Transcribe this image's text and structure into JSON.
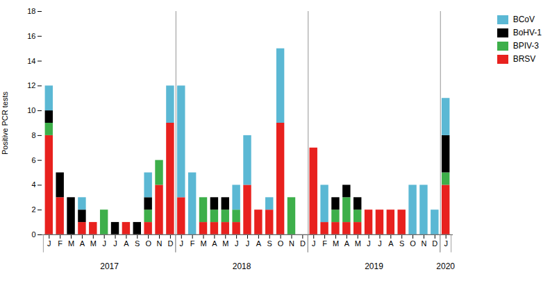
{
  "chart_data": {
    "type": "bar",
    "stacked": true,
    "categories": [
      "J",
      "F",
      "M",
      "A",
      "M",
      "J",
      "J",
      "A",
      "S",
      "O",
      "N",
      "D",
      "J",
      "F",
      "M",
      "A",
      "M",
      "J",
      "J",
      "A",
      "S",
      "O",
      "N",
      "D",
      "J",
      "F",
      "M",
      "A",
      "M",
      "J",
      "J",
      "A",
      "S",
      "O",
      "N",
      "D",
      "J"
    ],
    "series": [
      {
        "name": "BRSV",
        "color": "#e8211e",
        "values": [
          8,
          3,
          0,
          1,
          1,
          0,
          0,
          1,
          0,
          1,
          4,
          9,
          3,
          0,
          1,
          1,
          1,
          1,
          4,
          2,
          2,
          9,
          0,
          0,
          7,
          1,
          1,
          1,
          1,
          2,
          2,
          2,
          2,
          0,
          0,
          0,
          4
        ]
      },
      {
        "name": "BPIV-3",
        "color": "#3daf4a",
        "values": [
          1,
          0,
          0,
          0,
          0,
          2,
          0,
          0,
          0,
          1,
          2,
          0,
          0,
          0,
          2,
          1,
          1,
          1,
          0,
          0,
          0,
          0,
          3,
          0,
          0,
          0,
          1,
          2,
          1,
          0,
          0,
          0,
          0,
          0,
          0,
          0,
          1
        ]
      },
      {
        "name": "BoHV-1",
        "color": "#000000",
        "values": [
          1,
          2,
          3,
          1,
          0,
          0,
          1,
          0,
          1,
          1,
          0,
          0,
          0,
          0,
          0,
          1,
          1,
          0,
          0,
          0,
          0,
          0,
          0,
          0,
          0,
          0,
          1,
          1,
          1,
          0,
          0,
          0,
          0,
          0,
          0,
          0,
          3
        ]
      },
      {
        "name": "BCoV",
        "color": "#5bb8d4",
        "values": [
          2,
          0,
          0,
          1,
          0,
          0,
          0,
          0,
          0,
          2,
          0,
          3,
          9,
          5,
          0,
          0,
          0,
          2,
          4,
          0,
          1,
          6,
          0,
          0,
          0,
          3,
          0,
          0,
          0,
          0,
          0,
          0,
          0,
          4,
          4,
          2,
          3
        ]
      }
    ],
    "ylabel": "Positive PCR tests",
    "ylim": [
      0,
      18
    ],
    "yticks": [
      0,
      2,
      4,
      6,
      8,
      10,
      12,
      14,
      16,
      18
    ],
    "grid": false,
    "legend": "upper right",
    "annotations": [
      {
        "text": "2017",
        "first": 0,
        "last": 11
      },
      {
        "text": "2018",
        "first": 12,
        "last": 23
      },
      {
        "text": "2019",
        "first": 24,
        "last": 35
      },
      {
        "text": "2020",
        "first": 36,
        "last": 36
      }
    ]
  }
}
